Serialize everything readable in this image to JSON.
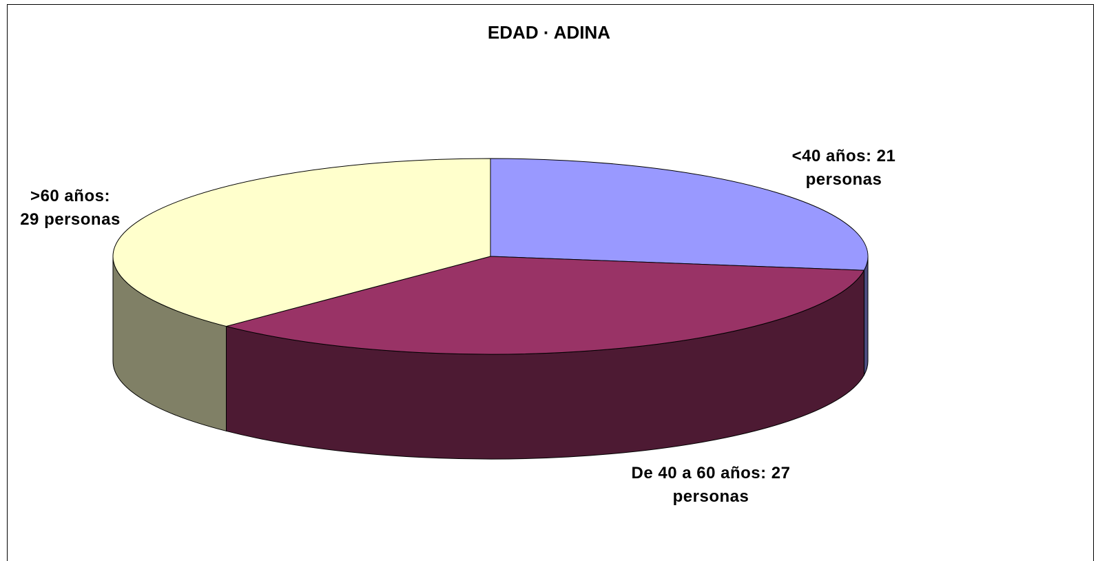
{
  "chart_data": {
    "type": "pie",
    "title": "EDAD · ADINA",
    "values": [
      21,
      27,
      29
    ],
    "value_labels": [
      "<40 años: 21\npersonas",
      "De 40 a 60 años: 27\npersonas",
      ">60 años:\n29 personas"
    ],
    "colors": [
      "#9999ff",
      "#993366",
      "#ffffcc"
    ]
  }
}
